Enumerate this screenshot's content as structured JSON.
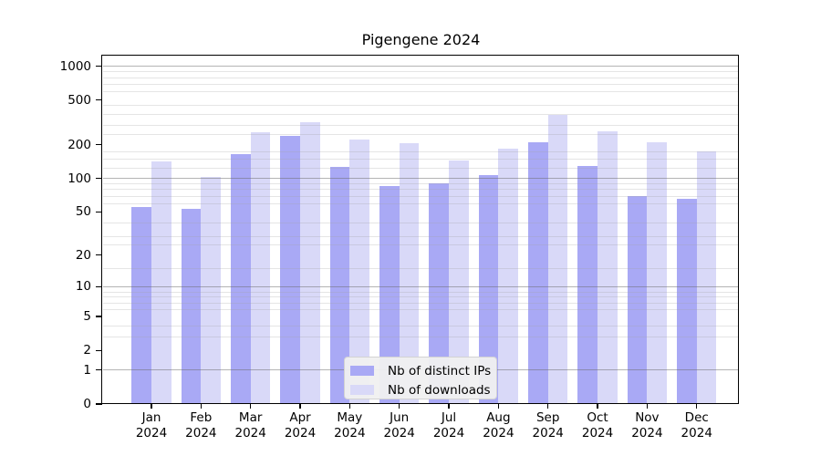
{
  "chart_data": {
    "type": "bar",
    "title": "Pigengene 2024",
    "x_year": "2024",
    "categories": [
      "Jan",
      "Feb",
      "Mar",
      "Apr",
      "May",
      "Jun",
      "Jul",
      "Aug",
      "Sep",
      "Oct",
      "Nov",
      "Dec"
    ],
    "series": [
      {
        "name": "Nb of distinct IPs",
        "color": "#a9a9f5",
        "values": [
          55,
          53,
          165,
          240,
          127,
          86,
          91,
          107,
          211,
          129,
          69,
          66
        ]
      },
      {
        "name": "Nb of downloads",
        "color": "#d9d9f8",
        "values": [
          141,
          103,
          258,
          320,
          222,
          206,
          144,
          184,
          370,
          262,
          210,
          175
        ]
      }
    ],
    "xlabel": "",
    "ylabel": "",
    "y_scale": "log10(value+1)",
    "ylim": [
      0,
      1220
    ],
    "y_ticks": [
      0,
      1,
      2,
      5,
      10,
      20,
      50,
      100,
      200,
      500,
      1000
    ],
    "major_gridlines": [
      1,
      10,
      100,
      1000
    ],
    "minor_gridlines": [
      3,
      4,
      6,
      7,
      8,
      9,
      15,
      25,
      30,
      40,
      60,
      70,
      80,
      90,
      125,
      150,
      175,
      250,
      300,
      375,
      450,
      600,
      700,
      800,
      900
    ],
    "grid": true,
    "legend_position": "bottom-center"
  }
}
